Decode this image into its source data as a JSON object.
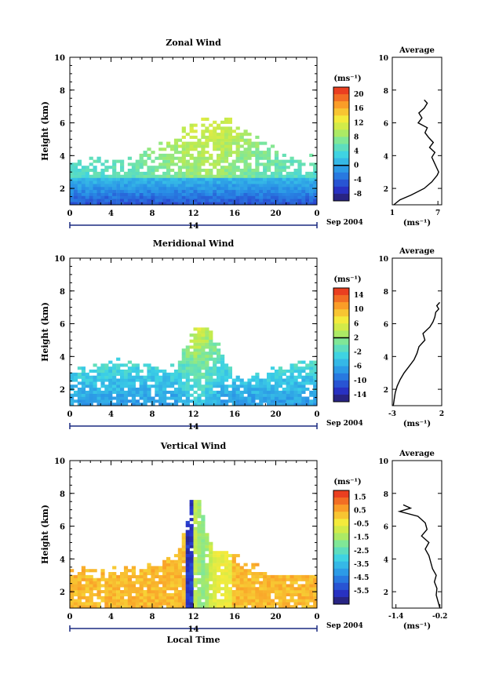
{
  "chart_data": [
    {
      "type": "heatmap",
      "title": "Zonal Wind",
      "ylabel": "Height (km)",
      "ylim": [
        1,
        10
      ],
      "yticks": [
        2,
        4,
        6,
        8,
        10
      ],
      "xticks": [
        "0",
        "4",
        "8",
        "12",
        "16",
        "20",
        "0"
      ],
      "xlim": [
        0,
        24
      ],
      "date_mid": "14",
      "date_label": "Sep 2004",
      "colorbar": {
        "units": "(ms⁻¹)",
        "range": [
          -10,
          22
        ],
        "ticks": [
          "20",
          "16",
          "12",
          "8",
          "4",
          "0",
          "-4",
          "-8"
        ],
        "tick_values": [
          20,
          16,
          12,
          8,
          4,
          0,
          -4,
          -8
        ],
        "zero_line": 0
      },
      "average": {
        "title": "Average",
        "xlabel": "(ms⁻¹)",
        "xticks": [
          "1",
          "7"
        ],
        "xlim": [
          1,
          7.5
        ],
        "yticks": [
          "2",
          "4",
          "6",
          "8"
        ],
        "profile_heights": [
          1.0,
          1.3,
          1.6,
          2.0,
          2.4,
          2.8,
          3.0,
          3.3,
          3.6,
          3.9,
          4.2,
          4.5,
          4.8,
          5.1,
          5.4,
          5.7,
          6.0,
          6.3,
          6.6,
          6.9,
          7.2,
          7.4
        ],
        "profile_values": [
          1.2,
          2.0,
          3.5,
          5.2,
          6.2,
          6.9,
          7.1,
          6.8,
          6.5,
          6.2,
          6.6,
          5.9,
          6.4,
          5.8,
          5.3,
          5.6,
          4.4,
          4.9,
          4.5,
          5.2,
          5.6,
          5.2
        ]
      }
    },
    {
      "type": "heatmap",
      "title": "Meridional Wind",
      "ylabel": "Height (km)",
      "ylim": [
        1,
        10
      ],
      "yticks": [
        2,
        4,
        6,
        8,
        10
      ],
      "xticks": [
        "0",
        "4",
        "8",
        "12",
        "16",
        "20",
        "0"
      ],
      "xlim": [
        0,
        24
      ],
      "date_mid": "14",
      "date_label": "Sep 2004",
      "colorbar": {
        "units": "(ms⁻¹)",
        "range": [
          -16,
          16
        ],
        "ticks": [
          "14",
          "10",
          "6",
          "2",
          "-2",
          "-6",
          "-10",
          "-14"
        ],
        "tick_values": [
          14,
          10,
          6,
          2,
          -2,
          -6,
          -10,
          -14
        ],
        "zero_line": 2
      },
      "average": {
        "title": "Average",
        "xlabel": "(ms⁻¹)",
        "xticks": [
          "-3",
          "2"
        ],
        "xlim": [
          -3,
          2
        ],
        "yticks": [
          "2",
          "4",
          "6",
          "8"
        ],
        "profile_heights": [
          1.0,
          1.4,
          1.8,
          2.2,
          2.6,
          3.0,
          3.4,
          3.8,
          4.2,
          4.6,
          5.0,
          5.4,
          5.8,
          6.1,
          6.4,
          6.7,
          6.9,
          7.1,
          7.3
        ],
        "profile_values": [
          -2.9,
          -2.8,
          -2.7,
          -2.5,
          -2.2,
          -1.8,
          -1.3,
          -0.8,
          -0.5,
          -0.3,
          0.3,
          0.1,
          0.8,
          1.1,
          1.3,
          1.4,
          1.7,
          1.5,
          1.8
        ]
      }
    },
    {
      "type": "heatmap",
      "title": "Vertical Wind",
      "ylabel": "Height (km)",
      "ylim": [
        1,
        10
      ],
      "yticks": [
        2,
        4,
        6,
        8,
        10
      ],
      "xticks": [
        "0",
        "4",
        "8",
        "12",
        "16",
        "20",
        "0"
      ],
      "xlim": [
        0,
        24
      ],
      "date_mid": "14",
      "date_label": "Sep 2004",
      "xlabel": "Local Time",
      "colorbar": {
        "units": "(ms⁻¹)",
        "range": [
          -6.5,
          2
        ],
        "ticks": [
          "1.5",
          "0.5",
          "-0.5",
          "-1.5",
          "-2.5",
          "-3.5",
          "-4.5",
          "-5.5"
        ],
        "tick_values": [
          1.5,
          0.5,
          -0.5,
          -1.5,
          -2.5,
          -3.5,
          -4.5,
          -5.5
        ],
        "zero_line": null
      },
      "average": {
        "title": "Average",
        "xlabel": "(ms⁻¹)",
        "xticks": [
          "-1.4",
          "-0.2"
        ],
        "xlim": [
          -1.5,
          -0.15
        ],
        "yticks": [
          "2",
          "4",
          "6",
          "8",
          "10"
        ],
        "profile_heights": [
          1.0,
          1.4,
          1.8,
          2.2,
          2.6,
          3.0,
          3.4,
          3.8,
          4.2,
          4.6,
          5.0,
          5.4,
          5.8,
          6.2,
          6.6,
          6.9,
          7.1,
          7.3
        ],
        "profile_values": [
          -0.2,
          -0.25,
          -0.3,
          -0.28,
          -0.35,
          -0.3,
          -0.4,
          -0.45,
          -0.5,
          -0.6,
          -0.5,
          -0.7,
          -0.55,
          -0.6,
          -0.8,
          -1.3,
          -1.0,
          -1.2
        ]
      }
    }
  ]
}
